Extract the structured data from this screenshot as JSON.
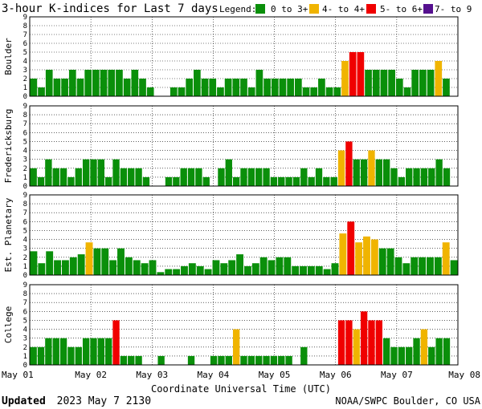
{
  "chart_data": {
    "type": "bar",
    "title": "3-hour K-indices for Last 7 days",
    "legend": {
      "label": "Legend:",
      "entries": [
        {
          "label": "0 to 3+",
          "color": "#0a8f0a"
        },
        {
          "label": "4- to 4+",
          "color": "#f0b400"
        },
        {
          "label": "5- to 6+",
          "color": "#f00000"
        },
        {
          "label": "7- to 9",
          "color": "#55108e"
        }
      ],
      "placement": "top-right"
    },
    "xlabel": "Coordinate Universal Time (UTC)",
    "x_ticks": [
      "May 01",
      "May 02",
      "May 03",
      "May 04",
      "May 05",
      "May 06",
      "May 07",
      "May 08"
    ],
    "ylim": [
      0,
      9
    ],
    "y_ticks": [
      "0",
      "1",
      "2",
      "3",
      "4",
      "5",
      "6",
      "7",
      "8",
      "9"
    ],
    "grid": "horizontal",
    "series": [
      {
        "name": "Boulder",
        "values": [
          2,
          1,
          3,
          2,
          2,
          3,
          2,
          3,
          3,
          3,
          3,
          3,
          2,
          3,
          2,
          1,
          0,
          0,
          1,
          1,
          2,
          3,
          2,
          2,
          1,
          2,
          2,
          2,
          1,
          3,
          2,
          2,
          2,
          2,
          2,
          1,
          1,
          2,
          1,
          1,
          4,
          5,
          5,
          3,
          3,
          3,
          3,
          2,
          1,
          3,
          3,
          3,
          4,
          2,
          0
        ]
      },
      {
        "name": "Fredericksburg",
        "values": [
          2,
          1,
          3,
          2,
          2,
          1,
          2,
          3,
          3,
          3,
          1,
          3,
          2,
          2,
          2,
          1,
          0,
          0,
          1,
          1,
          2,
          2,
          2,
          1,
          0,
          2,
          3,
          1,
          2,
          2,
          2,
          2,
          1,
          1,
          1,
          1,
          2,
          1,
          2,
          1,
          1,
          4,
          5,
          3,
          3,
          4,
          3,
          3,
          2,
          1,
          2,
          2,
          2,
          2,
          3,
          2,
          0
        ]
      },
      {
        "name": "Est. Planetary",
        "values": [
          2.67,
          1.33,
          2.67,
          1.67,
          1.67,
          2.0,
          2.33,
          3.67,
          3.0,
          3.0,
          1.67,
          3.0,
          2.0,
          1.67,
          1.33,
          1.67,
          0.33,
          0.67,
          0.67,
          1.0,
          1.33,
          1.0,
          0.67,
          1.67,
          1.33,
          1.67,
          2.33,
          1.0,
          1.33,
          2.0,
          1.67,
          2.0,
          2.0,
          1.0,
          1.0,
          1.0,
          1.0,
          0.67,
          1.33,
          4.67,
          6.0,
          3.67,
          4.33,
          4.0,
          3.0,
          3.0,
          2.0,
          1.33,
          2.0,
          2.0,
          2.0,
          2.0,
          3.67,
          1.67
        ]
      },
      {
        "name": "College",
        "values": [
          2,
          2,
          3,
          3,
          3,
          2,
          2,
          3,
          3,
          3,
          3,
          5,
          1,
          1,
          1,
          0,
          0,
          1,
          0,
          0,
          0,
          1,
          0,
          0,
          1,
          1,
          1,
          4,
          1,
          1,
          1,
          1,
          1,
          1,
          1,
          0,
          2,
          0,
          0,
          0,
          0,
          5,
          5,
          4,
          6,
          5,
          5,
          3,
          2,
          2,
          2,
          3,
          4,
          2,
          3,
          3,
          0
        ]
      }
    ]
  },
  "footer": {
    "updated_label": "Updated",
    "updated_value": "2023 May  7 2130",
    "credit": "NOAA/SWPC Boulder, CO USA"
  }
}
